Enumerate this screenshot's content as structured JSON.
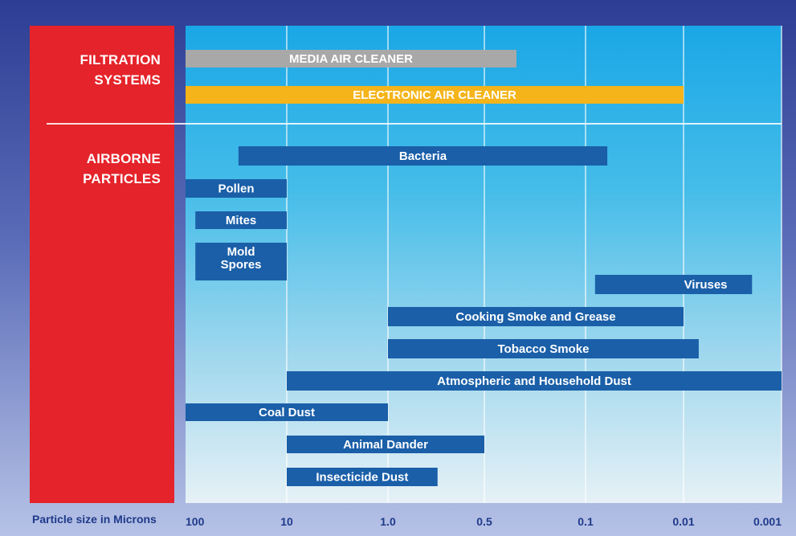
{
  "chart_data": {
    "type": "range-bar",
    "section_labels": {
      "filtration": [
        "FILTRATION",
        "SYSTEMS"
      ],
      "particles": [
        "AIRBORNE",
        "PARTICLES"
      ]
    },
    "xlabel": "Particle size in Microns",
    "x_scale": "log",
    "x_direction": "descending",
    "xlim": [
      100,
      0.001
    ],
    "x_ticks": [
      {
        "value": 100,
        "label": "100"
      },
      {
        "value": 10,
        "label": "10"
      },
      {
        "value": 1.0,
        "label": "1.0"
      },
      {
        "value": 0.5,
        "label": "0.5"
      },
      {
        "value": 0.1,
        "label": "0.1"
      },
      {
        "value": 0.01,
        "label": "0.01"
      },
      {
        "value": 0.001,
        "label": "0.001"
      }
    ],
    "grid": true,
    "filtration_systems": [
      {
        "name": "MEDIA AIR CLEANER",
        "max_size": 100,
        "min_size": 0.3,
        "color": "#a8a8a8"
      },
      {
        "name": "ELECTRONIC AIR CLEANER",
        "max_size": 100,
        "min_size": 0.01,
        "color": "#f4b41a"
      }
    ],
    "airborne_particles": [
      {
        "name": "Bacteria",
        "max_size": 30,
        "min_size": 0.06
      },
      {
        "name": "Pollen",
        "max_size": 100,
        "min_size": 10
      },
      {
        "name": "Mites",
        "max_size": 80,
        "min_size": 10
      },
      {
        "name": "Mold Spores",
        "max_size": 80,
        "min_size": 10
      },
      {
        "name": "Viruses",
        "max_size": 0.08,
        "min_size": 0.002
      },
      {
        "name": "Cooking Smoke and Grease",
        "max_size": 1.0,
        "min_size": 0.01
      },
      {
        "name": "Tobacco Smoke",
        "max_size": 1.0,
        "min_size": 0.007
      },
      {
        "name": "Atmospheric and Household Dust",
        "max_size": 10,
        "min_size": 0.001
      },
      {
        "name": "Coal Dust",
        "max_size": 100,
        "min_size": 1.0
      },
      {
        "name": "Animal Dander",
        "max_size": 10,
        "min_size": 0.5
      },
      {
        "name": "Insecticide Dust",
        "max_size": 10,
        "min_size": 0.7
      }
    ],
    "particle_color": "#1a5fa8"
  }
}
